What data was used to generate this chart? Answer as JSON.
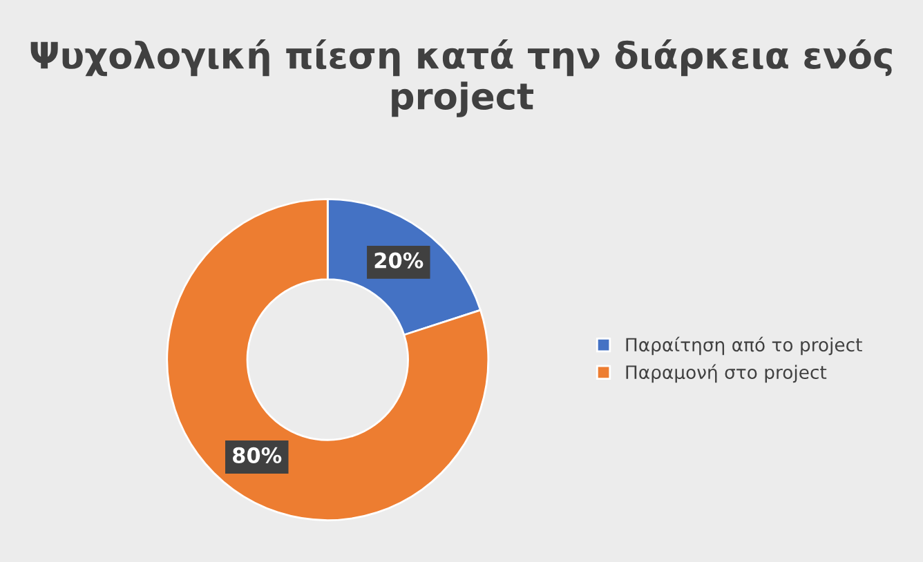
{
  "chart_data": {
    "type": "donut",
    "title": "Ψυχολογική πίεση κατά την διάρκεια ενός project",
    "categories": [
      "Παραίτηση από το project",
      "Παραμονή στο project"
    ],
    "values": [
      20,
      80
    ],
    "colors": [
      "#4472c4",
      "#ed7d31"
    ],
    "value_labels": [
      "20%",
      "80%"
    ],
    "legend": "right"
  }
}
